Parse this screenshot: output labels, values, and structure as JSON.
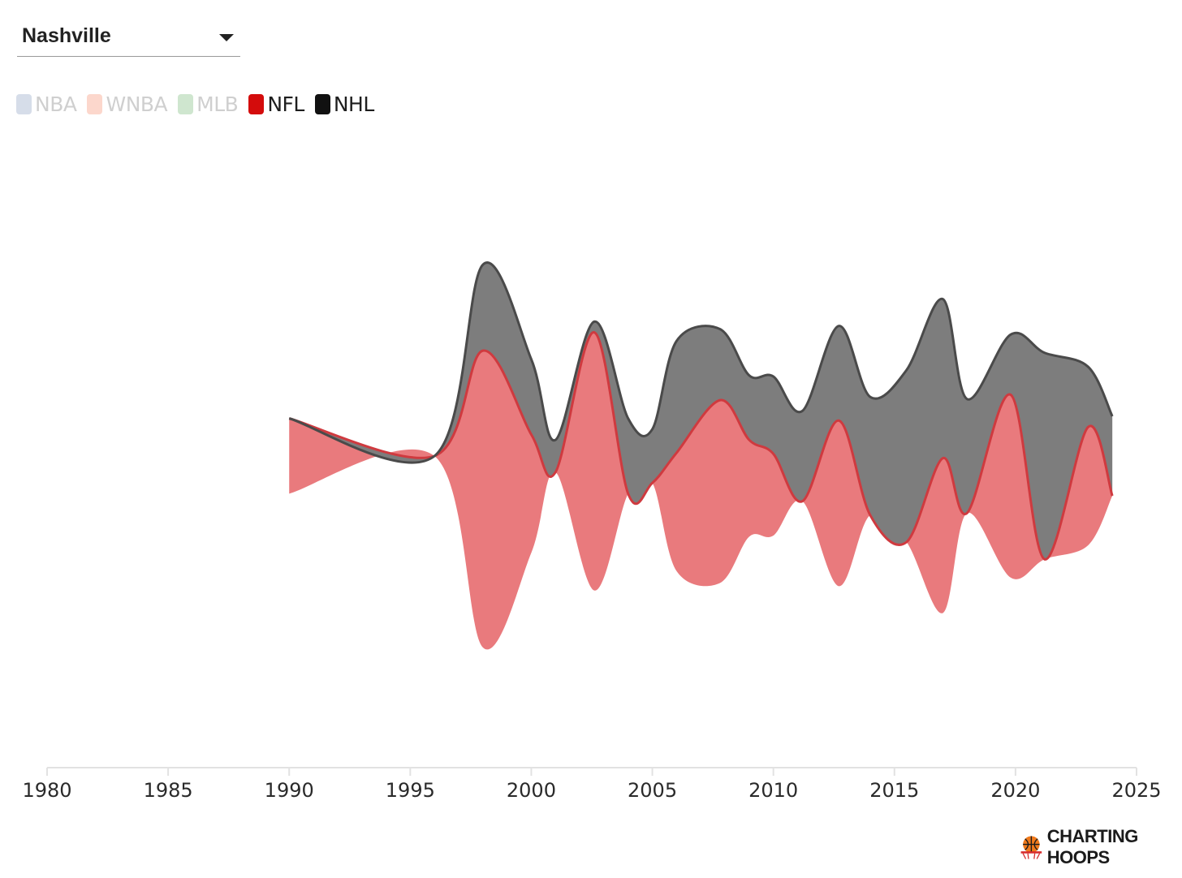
{
  "city_selector": {
    "value": "Nashville"
  },
  "legend": [
    {
      "label": "NBA",
      "color": "#d6dde9",
      "active": false
    },
    {
      "label": "WNBA",
      "color": "#fcd7cc",
      "active": false
    },
    {
      "label": "MLB",
      "color": "#cfe6cf",
      "active": false
    },
    {
      "label": "NFL",
      "color": "#d40c0c",
      "active": true
    },
    {
      "label": "NHL",
      "color": "#111111",
      "active": true
    }
  ],
  "brand": {
    "text": "CHARTING HOOPS",
    "icon": "basketball-hoop-icon"
  },
  "chart_data": {
    "type": "area",
    "layout": "streamgraph",
    "xlim": [
      1980,
      2025
    ],
    "xticks": [
      "1980",
      "1985",
      "1990",
      "1995",
      "2000",
      "2005",
      "2010",
      "2015",
      "2020",
      "2025"
    ],
    "xlabel": "",
    "ylabel": "",
    "grid": false,
    "colors": {
      "NFL": "#e97a7d",
      "NHL": "#7d7d7d"
    },
    "series": [
      {
        "name": "NFL",
        "x": [
          1990,
          1996,
          1998,
          2000,
          2001,
          2002.6,
          2004,
          2005,
          2006,
          2007.8,
          2009,
          2010,
          2011.2,
          2012.7,
          2014,
          2015.5,
          2017,
          2018,
          2019.8,
          2021.2,
          2023,
          2024
        ],
        "values": [
          0.35,
          0.0,
          1.38,
          0.55,
          0.0,
          1.2,
          0.0,
          0.0,
          0.55,
          0.85,
          0.45,
          0.38,
          0.0,
          0.77,
          0.0,
          0.0,
          0.72,
          0.0,
          0.85,
          0.0,
          0.55,
          0.0
        ]
      },
      {
        "name": "NHL",
        "x": [
          1990,
          1996,
          1998,
          2000,
          2001,
          2002.6,
          2004,
          2005,
          2006,
          2007.8,
          2009,
          2010,
          2011.2,
          2012.7,
          2014,
          2015.5,
          2017,
          2018,
          2019.8,
          2021.2,
          2023,
          2024
        ],
        "values": [
          0.0,
          0.0,
          0.4,
          0.35,
          0.15,
          0.05,
          0.35,
          0.25,
          0.52,
          0.33,
          0.3,
          0.36,
          0.42,
          0.44,
          0.55,
          0.8,
          0.74,
          0.53,
          0.28,
          0.96,
          0.28,
          0.37
        ]
      }
    ]
  }
}
